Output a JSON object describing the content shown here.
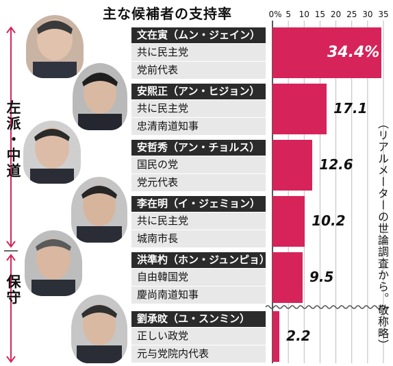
{
  "chart_data": {
    "type": "bar",
    "orientation": "horizontal",
    "title": "主な候補者の支持率",
    "x_unit": "%",
    "xlim": [
      0,
      35
    ],
    "ticks": [
      "0%",
      "5",
      "10",
      "15",
      "20",
      "25",
      "30",
      "35"
    ],
    "value_labels": [
      "34.4%",
      "17.1",
      "12.6",
      "10.2",
      "9.5",
      "2.2"
    ],
    "categories": [
      "文在寅（ムン・ジェイン）",
      "安煕正（アン・ヒジョン）",
      "安哲秀（アン・チョルス）",
      "李在明（イ・ジェミョン）",
      "洪準杓（ホン・ジュンピョ）",
      "劉承旼（ユ・スンミン）"
    ],
    "values": [
      34.4,
      17.1,
      12.6,
      10.2,
      9.5,
      2.2
    ],
    "candidates": [
      {
        "name": "文在寅（ムン・ジェイン）",
        "party": "共に民主党",
        "role": "党前代表",
        "value": 34.4
      },
      {
        "name": "安煕正（アン・ヒジョン）",
        "party": "共に民主党",
        "role": "忠清南道知事",
        "value": 17.1
      },
      {
        "name": "安哲秀（アン・チョルス）",
        "party": "国民の党",
        "role": "党元代表",
        "value": 12.6
      },
      {
        "name": "李在明（イ・ジェミョン）",
        "party": "共に民主党",
        "role": "城南市長",
        "value": 10.2
      },
      {
        "name": "洪準杓（ホン・ジュンピョ）",
        "party": "自由韓国党",
        "role": "慶尚南道知事",
        "value": 9.5
      },
      {
        "name": "劉承旼（ユ・スンミン）",
        "party": "正しい政党",
        "role": "元与党院内代表",
        "value": 2.2
      }
    ],
    "groups": [
      {
        "label": "左派・中道"
      },
      {
        "label": "保守"
      }
    ],
    "source_note": "（リアルメーターの世論調査から。敬称略）",
    "colors": {
      "bar": "#d6245a",
      "name_bg": "#2b2b2b",
      "info_bg": "#e8e8e8"
    }
  }
}
